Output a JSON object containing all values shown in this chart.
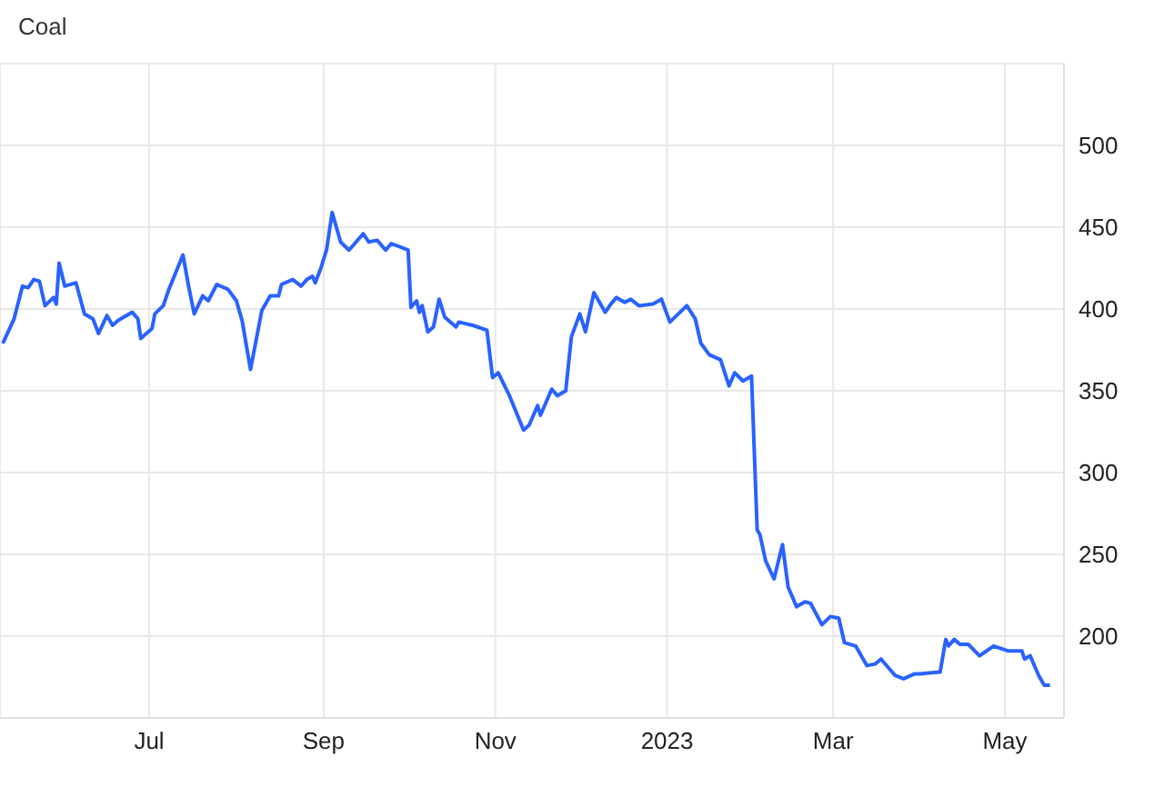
{
  "chart_data": {
    "type": "line",
    "title": "Coal",
    "x": [
      "2022-05-10",
      "2022-05-14",
      "2022-05-17",
      "2022-05-19",
      "2022-05-21",
      "2022-05-23",
      "2022-05-25",
      "2022-05-28",
      "2022-05-29",
      "2022-05-30",
      "2022-06-01",
      "2022-06-05",
      "2022-06-08",
      "2022-06-11",
      "2022-06-13",
      "2022-06-16",
      "2022-06-18",
      "2022-06-20",
      "2022-06-25",
      "2022-06-27",
      "2022-06-28",
      "2022-07-02",
      "2022-07-03",
      "2022-07-06",
      "2022-07-08",
      "2022-07-13",
      "2022-07-15",
      "2022-07-17",
      "2022-07-20",
      "2022-07-22",
      "2022-07-25",
      "2022-07-29",
      "2022-08-01",
      "2022-08-03",
      "2022-08-06",
      "2022-08-10",
      "2022-08-13",
      "2022-08-16",
      "2022-08-17",
      "2022-08-21",
      "2022-08-24",
      "2022-08-26",
      "2022-08-28",
      "2022-08-29",
      "2022-08-31",
      "2022-09-02",
      "2022-09-04",
      "2022-09-07",
      "2022-09-10",
      "2022-09-15",
      "2022-09-17",
      "2022-09-20",
      "2022-09-23",
      "2022-09-25",
      "2022-10-01",
      "2022-10-02",
      "2022-10-04",
      "2022-10-05",
      "2022-10-06",
      "2022-10-08",
      "2022-10-10",
      "2022-10-12",
      "2022-10-14",
      "2022-10-18",
      "2022-10-19",
      "2022-10-24",
      "2022-10-29",
      "2022-10-31",
      "2022-11-02",
      "2022-11-06",
      "2022-11-11",
      "2022-11-13",
      "2022-11-16",
      "2022-11-17",
      "2022-11-21",
      "2022-11-23",
      "2022-11-26",
      "2022-11-28",
      "2022-12-01",
      "2022-12-03",
      "2022-12-06",
      "2022-12-10",
      "2022-12-12",
      "2022-12-14",
      "2022-12-17",
      "2022-12-19",
      "2022-12-22",
      "2022-12-27",
      "2022-12-30",
      "2023-01-02",
      "2023-01-08",
      "2023-01-11",
      "2023-01-13",
      "2023-01-16",
      "2023-01-20",
      "2023-01-23",
      "2023-01-25",
      "2023-01-28",
      "2023-01-31",
      "2023-02-02",
      "2023-02-03",
      "2023-02-05",
      "2023-02-08",
      "2023-02-11",
      "2023-02-13",
      "2023-02-16",
      "2023-02-19",
      "2023-02-21",
      "2023-02-25",
      "2023-02-28",
      "2023-03-03",
      "2023-03-05",
      "2023-03-09",
      "2023-03-13",
      "2023-03-16",
      "2023-03-18",
      "2023-03-23",
      "2023-03-26",
      "2023-03-30",
      "2023-04-01",
      "2023-04-08",
      "2023-04-10",
      "2023-04-11",
      "2023-04-13",
      "2023-04-15",
      "2023-04-18",
      "2023-04-22",
      "2023-04-27",
      "2023-05-02",
      "2023-05-07",
      "2023-05-08",
      "2023-05-10",
      "2023-05-13",
      "2023-05-15",
      "2023-05-17"
    ],
    "series": [
      {
        "color": "#2962ff",
        "values": [
          379,
          394,
          414,
          413,
          418,
          417,
          402,
          407,
          403,
          428,
          414,
          416,
          397,
          394,
          385,
          396,
          390,
          393,
          398,
          394,
          382,
          388,
          397,
          402,
          412,
          433,
          414,
          397,
          408,
          405,
          415,
          412,
          405,
          393,
          363,
          399,
          408,
          408,
          415,
          418,
          414,
          418,
          420,
          416,
          425,
          436,
          459,
          441,
          436,
          446,
          441,
          442,
          436,
          440,
          436,
          401,
          405,
          398,
          402,
          386,
          389,
          406,
          395,
          389,
          392,
          390,
          387,
          358,
          361,
          347,
          326,
          329,
          341,
          335,
          351,
          347,
          350,
          383,
          397,
          386,
          410,
          398,
          403,
          407,
          404,
          406,
          402,
          403,
          406,
          392,
          402,
          394,
          379,
          372,
          369,
          353,
          361,
          356,
          359,
          265,
          262,
          246,
          235,
          256,
          230,
          218,
          221,
          220,
          207,
          212,
          211,
          196,
          194,
          182,
          183,
          186,
          176,
          174,
          177,
          177,
          178,
          198,
          194,
          198,
          195,
          195,
          188,
          194,
          191,
          191,
          186,
          188,
          176,
          170,
          170
        ]
      }
    ],
    "xlim": [
      "2022-05-09",
      "2023-05-22"
    ],
    "xticks": [
      {
        "value": "2022-07-01",
        "label": "Jul"
      },
      {
        "value": "2022-09-01",
        "label": "Sep"
      },
      {
        "value": "2022-11-01",
        "label": "Nov"
      },
      {
        "value": "2023-01-01",
        "label": "2023"
      },
      {
        "value": "2023-03-01",
        "label": "Mar"
      },
      {
        "value": "2023-05-01",
        "label": "May"
      }
    ],
    "ylim": [
      150,
      550
    ],
    "yticks": [
      200,
      250,
      300,
      350,
      400,
      450,
      500
    ],
    "grid": true,
    "marker": "none",
    "line_style": "solid",
    "legend": false
  }
}
